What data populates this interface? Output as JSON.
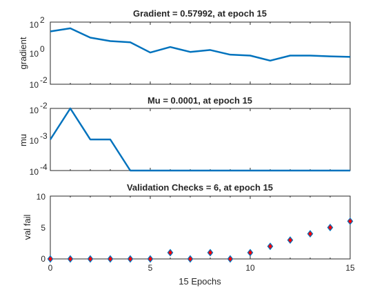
{
  "chart_data": [
    {
      "type": "line",
      "title": "Gradient = 0.57992, at epoch 15",
      "ylabel": "gradient",
      "yscale": "log",
      "ylim_exp": [
        -2,
        2
      ],
      "ytick_labels": [
        "10",
        "10",
        "10"
      ],
      "ytick_exponents": [
        "2",
        "0",
        "-2"
      ],
      "xlim": [
        0,
        15
      ],
      "x": [
        0,
        1,
        2,
        3,
        4,
        5,
        6,
        7,
        8,
        9,
        10,
        11,
        12,
        13,
        14,
        15
      ],
      "y": [
        25,
        40,
        10,
        6,
        5,
        1.1,
        2.5,
        1.2,
        1.6,
        0.8,
        0.7,
        0.33,
        0.7,
        0.7,
        0.62,
        0.58
      ],
      "color": "#0072BD"
    },
    {
      "type": "line",
      "title": "Mu = 0.0001, at epoch 15",
      "ylabel": "mu",
      "yscale": "log",
      "ylim_exp": [
        -4,
        -2
      ],
      "ytick_labels": [
        "10",
        "10",
        "10"
      ],
      "ytick_exponents": [
        "-2",
        "-3",
        "-4"
      ],
      "xlim": [
        0,
        15
      ],
      "x": [
        0,
        1,
        2,
        3,
        4,
        5,
        6,
        7,
        8,
        9,
        10,
        11,
        12,
        13,
        14,
        15
      ],
      "y": [
        0.001,
        0.01,
        0.001,
        0.001,
        0.0001,
        0.0001,
        0.0001,
        0.0001,
        0.0001,
        0.0001,
        0.0001,
        0.0001,
        0.0001,
        0.0001,
        0.0001,
        0.0001
      ],
      "color": "#0072BD"
    },
    {
      "type": "scatter",
      "title": "Validation Checks = 6, at epoch 15",
      "ylabel": "val fail",
      "xlabel": "15 Epochs",
      "ylim": [
        0,
        10
      ],
      "yticks": [
        "10",
        "5",
        "0"
      ],
      "xlim": [
        0,
        15
      ],
      "xticks": [
        "0",
        "5",
        "10",
        "15"
      ],
      "x": [
        0,
        1,
        2,
        3,
        4,
        5,
        6,
        7,
        8,
        9,
        10,
        11,
        12,
        13,
        14,
        15
      ],
      "y": [
        0,
        0,
        0,
        0,
        0,
        0,
        1,
        0,
        1,
        0,
        1,
        2,
        3,
        4,
        5,
        6
      ],
      "marker_fill": "#FF0000",
      "marker_edge": "#0072BD"
    }
  ]
}
